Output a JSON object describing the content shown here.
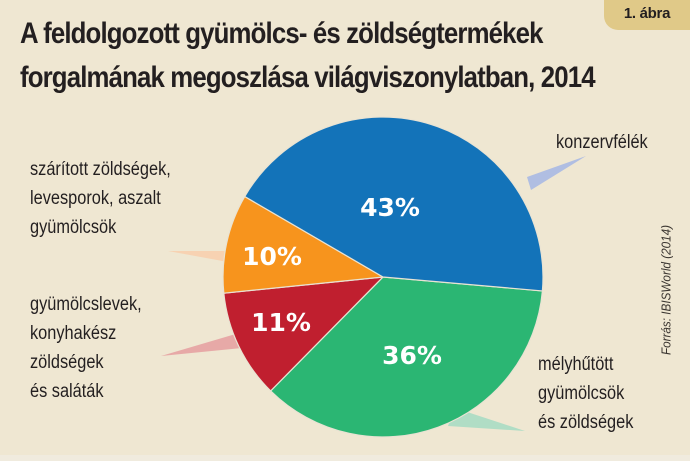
{
  "badge": "1. ábra",
  "title": {
    "line1": "A feldolgozott gyümölcs- és zöldségtermékek",
    "line2": "forgalmának megoszlása világviszonylatban, 2014"
  },
  "source": "Forrás: IBISWorld (2014)",
  "colors": {
    "background": "#efe7d2",
    "konzervfelek": "#1373b9",
    "melyhutott": "#2bb673",
    "gyumolcslevek": "#c01f2f",
    "szaritott": "#f7941d"
  },
  "labels": {
    "konzervfelek": [
      "konzervfélék"
    ],
    "melyhutott": [
      "mélyhűtött",
      "gyümölcsök",
      "és zöldségek"
    ],
    "gyumolcslevek": [
      "gyümölcslevek,",
      "konyhakész",
      "zöldségek",
      "és saláták"
    ],
    "szaritott": [
      "szárított zöldségek,",
      "levesporok, aszalt",
      "gyümölcsök"
    ]
  },
  "chart_data": {
    "type": "pie",
    "title": "A feldolgozott gyümölcs- és zöldségtermékek forgalmának megoszlása világviszonylatban, 2014",
    "unit": "%",
    "categories": [
      "konzervfélék",
      "mélyhűtött gyümölcsök és zöldségek",
      "gyümölcslevek, konyhakész zöldségek és saláták",
      "szárított zöldségek, levesporok, aszalt gyümölcsök"
    ],
    "values": [
      43,
      36,
      11,
      10
    ],
    "value_labels": [
      "43%",
      "36%",
      "11%",
      "10%"
    ],
    "colors": [
      "#1373b9",
      "#2bb673",
      "#c01f2f",
      "#f7941d"
    ],
    "start_angle_deg_clockwise_from_east": 5,
    "order": "clockwise starting with mélyhűtött after konzervfélék",
    "legend": "callout labels with pointer wedges",
    "source": "Forrás: IBISWorld (2014)",
    "figure_number": "1. ábra"
  }
}
